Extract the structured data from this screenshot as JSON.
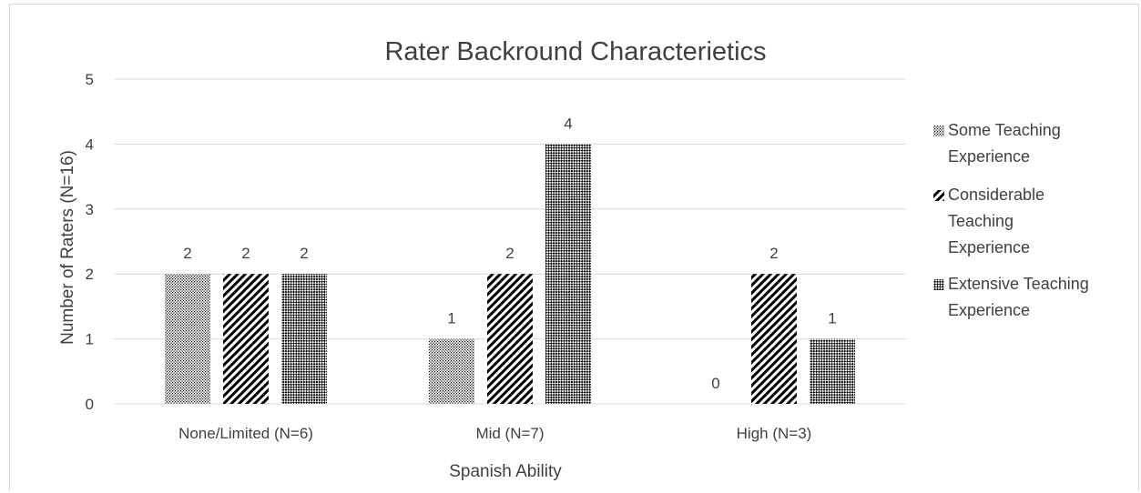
{
  "chart_data": {
    "type": "bar",
    "title": "Rater Backround Characterietics",
    "xlabel": "Spanish Ability",
    "ylabel": "Number of Raters (N=16)",
    "ylim": [
      0,
      5
    ],
    "yticks": [
      "0",
      "1",
      "2",
      "3",
      "4",
      "5"
    ],
    "categories": [
      "None/Limited (N=6)",
      "Mid (N=7)",
      "High (N=3)"
    ],
    "series": [
      {
        "name": "Some Teaching Experience",
        "name_lines": [
          "Some Teaching",
          "Experience"
        ],
        "pattern": "dots",
        "values": [
          2,
          1,
          0
        ]
      },
      {
        "name": "Considerable Teaching Experience",
        "name_lines": [
          "Considerable",
          "Teaching",
          "Experience"
        ],
        "pattern": "diagonal",
        "values": [
          2,
          2,
          2
        ]
      },
      {
        "name": "Extensive Teaching Experience",
        "name_lines": [
          "Extensive Teaching",
          "Experience"
        ],
        "pattern": "checker",
        "values": [
          2,
          4,
          1
        ]
      }
    ],
    "grid": true,
    "legend_position": "right",
    "colors": {
      "text": "#404040",
      "grid": "#d9d9d9",
      "bar_fill": "#000000"
    }
  }
}
